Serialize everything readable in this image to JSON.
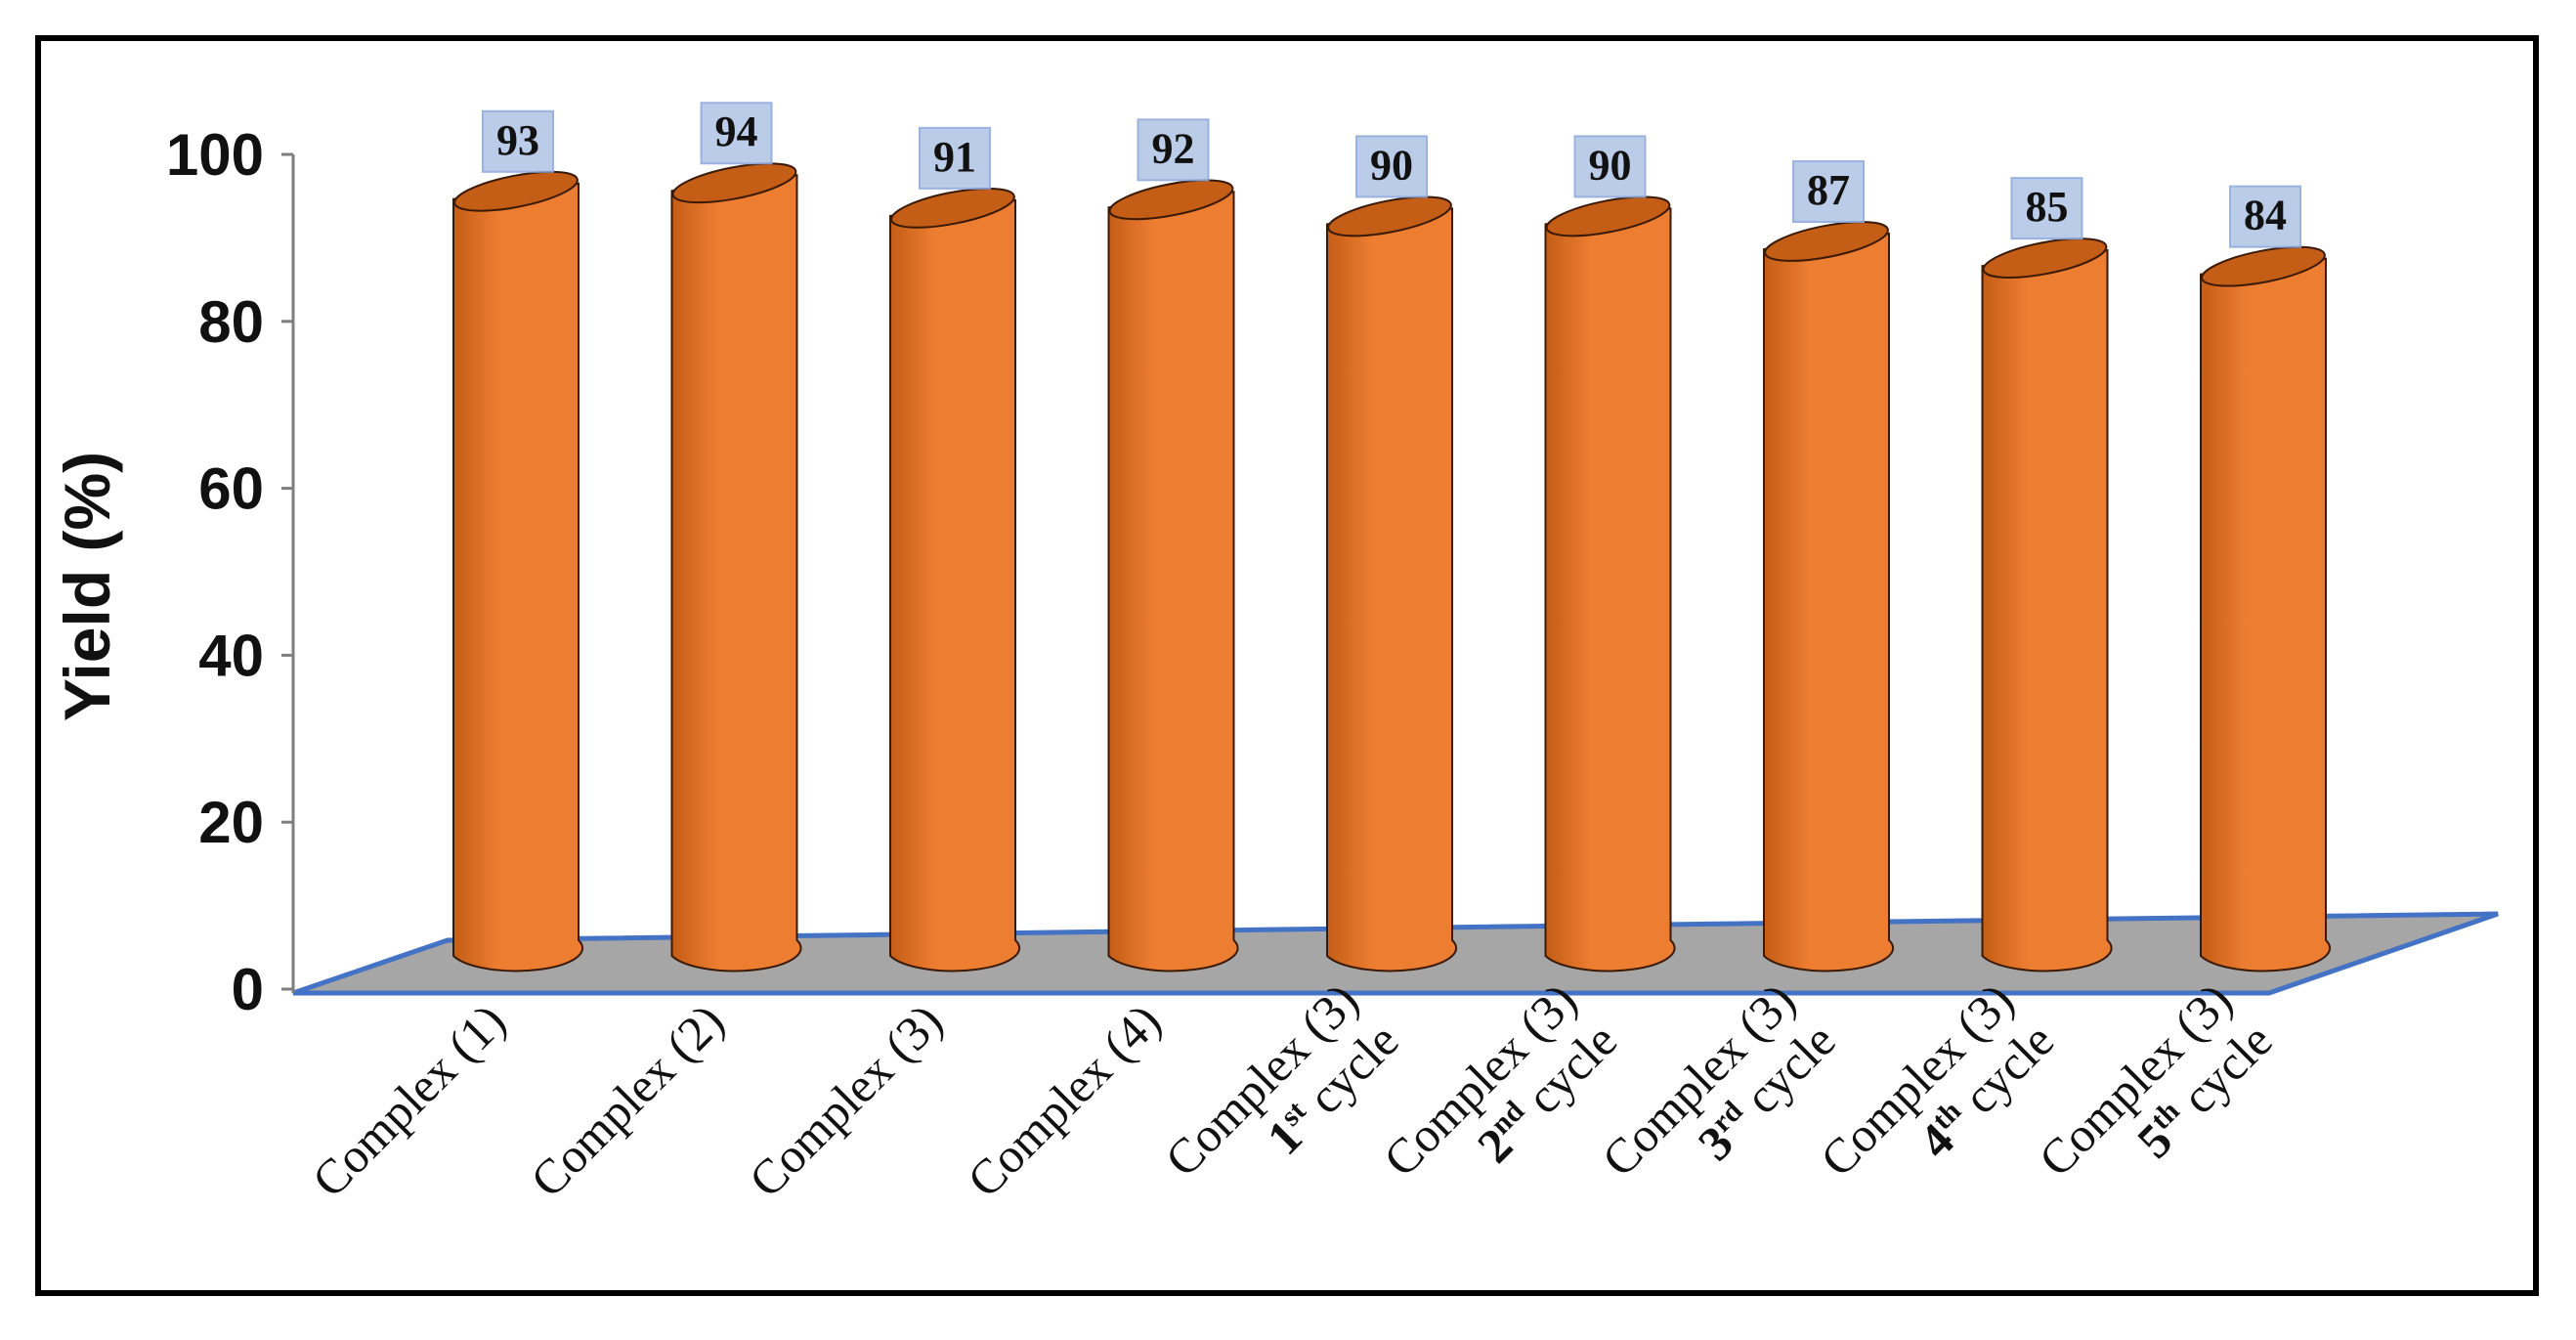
{
  "chart_data": {
    "type": "bar",
    "title": "",
    "xlabel": "",
    "ylabel": "Yield (%)",
    "ylim": [
      0,
      100
    ],
    "yticks": [
      0,
      20,
      40,
      60,
      80,
      100
    ],
    "categories": [
      {
        "line1": "Complex (1)",
        "num": "",
        "sup": "",
        "rest": ""
      },
      {
        "line1": "Complex (2)",
        "num": "",
        "sup": "",
        "rest": ""
      },
      {
        "line1": "Complex (3)",
        "num": "",
        "sup": "",
        "rest": ""
      },
      {
        "line1": "Complex (4)",
        "num": "",
        "sup": "",
        "rest": ""
      },
      {
        "line1": "Complex (3)",
        "num": "1",
        "sup": "st",
        "rest": " cycle"
      },
      {
        "line1": "Complex (3)",
        "num": "2",
        "sup": "nd",
        "rest": "  cycle"
      },
      {
        "line1": "Complex (3)",
        "num": "3",
        "sup": "rd",
        "rest": "  cycle"
      },
      {
        "line1": "Complex (3)",
        "num": "4",
        "sup": "th",
        "rest": "  cycle"
      },
      {
        "line1": "Complex (3)",
        "num": "5",
        "sup": "th",
        "rest": " cycle"
      }
    ],
    "values": [
      93,
      94,
      91,
      92,
      90,
      90,
      87,
      85,
      84
    ],
    "style": "3d-cylinder",
    "colors": {
      "bar": "#ED7D31",
      "bar_dark": "#C45D16",
      "floor": "#A6A6A6",
      "floor_edge": "#4472C4",
      "label_box": "#B4C7E7",
      "label_box_edge": "#8FAADC"
    }
  }
}
